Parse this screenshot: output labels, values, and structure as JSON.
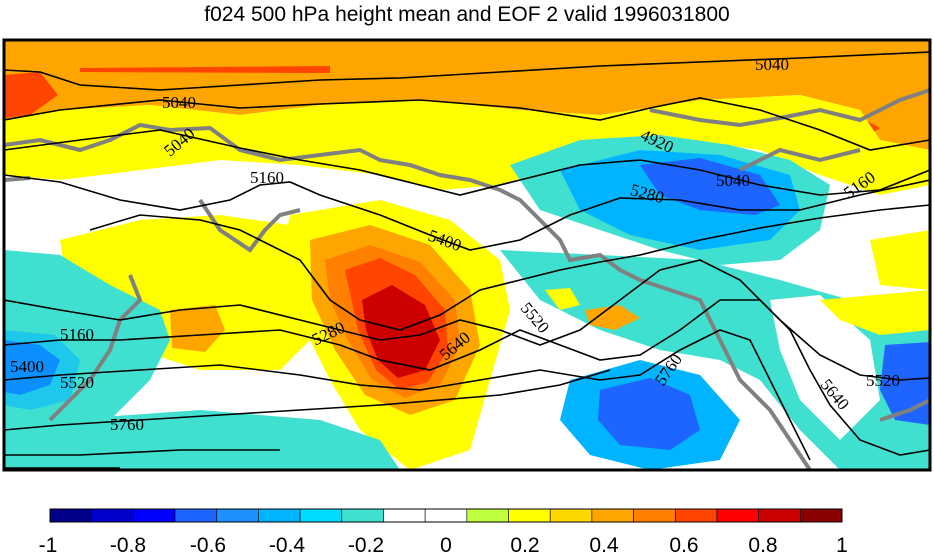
{
  "title": "f024 500 hPa height mean and EOF 2 valid 1996031800",
  "colorbar": {
    "labels": [
      "-1",
      "-0.8",
      "-0.6",
      "-0.4",
      "-0.2",
      "0",
      "0.2",
      "0.4",
      "0.6",
      "0.8",
      "1"
    ],
    "colors": [
      "#00008b",
      "#0000cd",
      "#0000ff",
      "#1e64ff",
      "#1e90ff",
      "#00b4ff",
      "#00dcff",
      "#40e0d0",
      "#ffffff",
      "#ffffff",
      "#c0ff3e",
      "#ffff00",
      "#ffd700",
      "#ffa500",
      "#ff7f00",
      "#ff4500",
      "#ff0000",
      "#cd0000",
      "#8b0000"
    ]
  },
  "contour_labels": [
    {
      "text": "5040"
    },
    {
      "text": "5040"
    },
    {
      "text": "5040"
    },
    {
      "text": "5040"
    },
    {
      "text": "4920"
    },
    {
      "text": "5160"
    },
    {
      "text": "5160"
    },
    {
      "text": "5160"
    },
    {
      "text": "5280"
    },
    {
      "text": "5280"
    },
    {
      "text": "5400"
    },
    {
      "text": "5400"
    },
    {
      "text": "5520"
    },
    {
      "text": "5520"
    },
    {
      "text": "5520"
    },
    {
      "text": "5640"
    },
    {
      "text": "5640"
    },
    {
      "text": "5760"
    },
    {
      "text": "5760"
    }
  ],
  "fill_colors": {
    "orange": "#ffa500",
    "dark_orange": "#ff7f00",
    "red_orange": "#ff4500",
    "red": "#ff0000",
    "dark_red": "#cd0000",
    "yellow": "#ffff00",
    "aqua": "#40e0d0",
    "cyan": "#00b4ff",
    "mid_blue": "#1e64ff",
    "blue": "#0000ff",
    "coast": "#808080"
  }
}
